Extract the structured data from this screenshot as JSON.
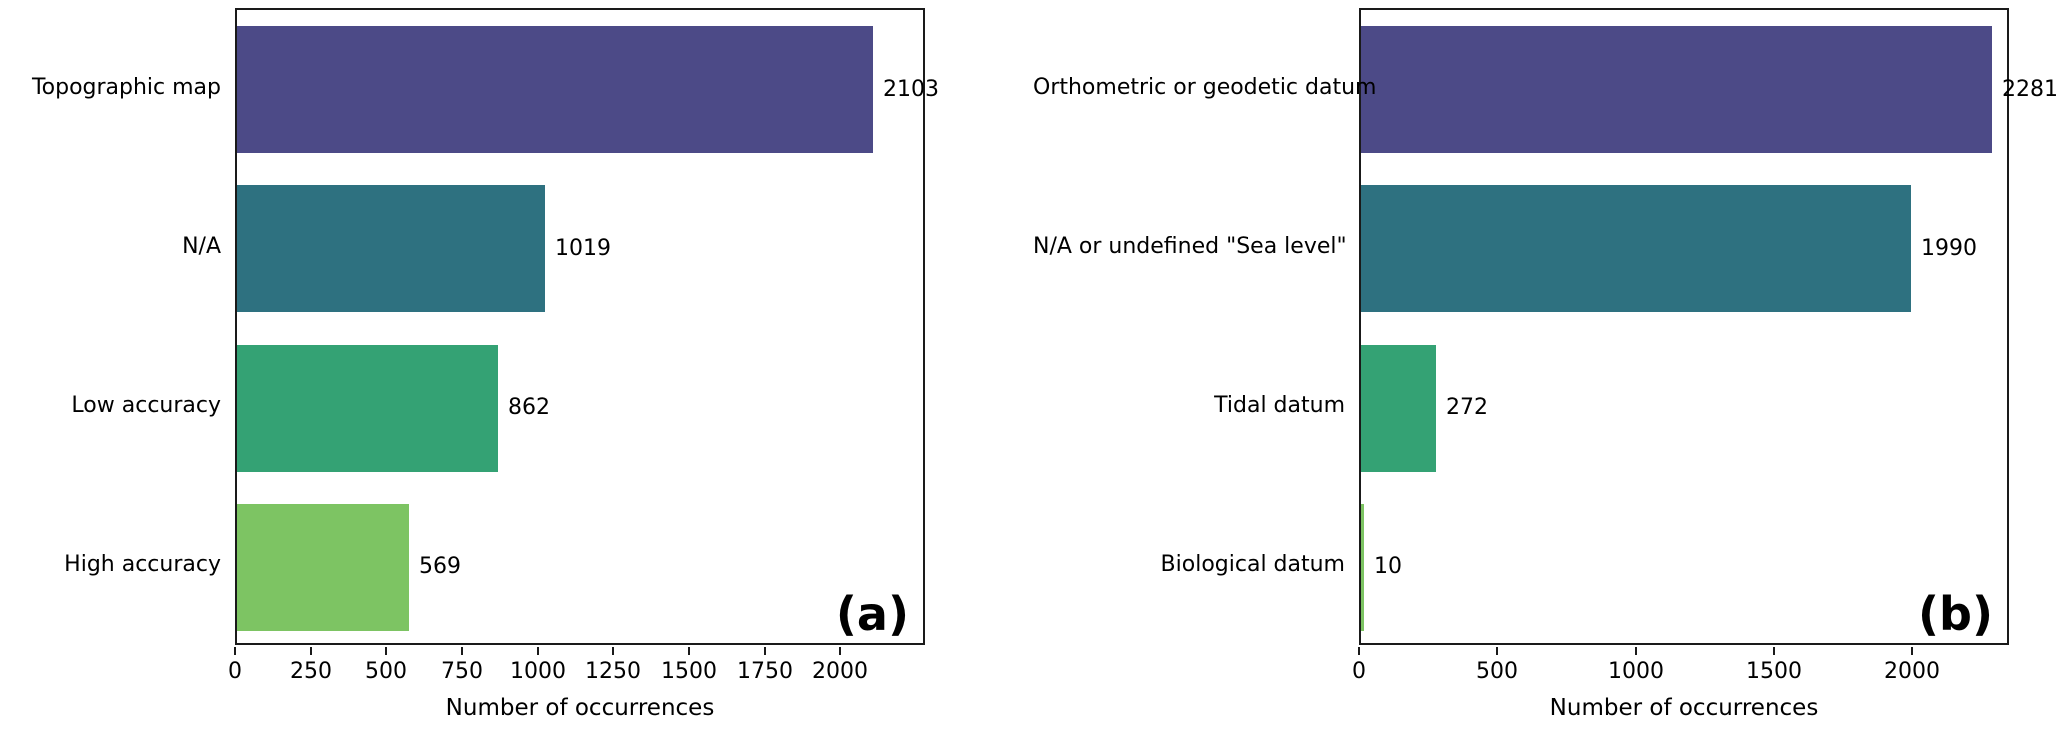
{
  "figure": {
    "background": "#ffffff",
    "text_color": "#000000",
    "spine_color": "#1a1a1a"
  },
  "chart_data": [
    {
      "type": "bar",
      "orientation": "horizontal",
      "panel_label": "(a)",
      "title": "",
      "xlabel": "Number of occurrences",
      "ylabel": "",
      "categories": [
        "Topographic map",
        "N/A",
        "Low accuracy",
        "High accuracy"
      ],
      "values": [
        2103,
        1019,
        862,
        569
      ],
      "value_labels": [
        "2103",
        "1019",
        "862",
        "569"
      ],
      "bar_colors": [
        "#4c4a87",
        "#2e7180",
        "#34a274",
        "#7dc463"
      ],
      "xlim": [
        0,
        2280
      ],
      "xticks": [
        0,
        250,
        500,
        750,
        1000,
        1250,
        1500,
        1750,
        2000
      ],
      "grid": false,
      "legend": false
    },
    {
      "type": "bar",
      "orientation": "horizontal",
      "panel_label": "(b)",
      "title": "",
      "xlabel": "Number of occurrences",
      "ylabel": "",
      "categories": [
        "Orthometric or geodetic datum",
        "N/A or undefined \"Sea level\"",
        "Tidal datum",
        "Biological datum"
      ],
      "values": [
        2281,
        1990,
        272,
        10
      ],
      "value_labels": [
        "2281",
        "1990",
        "272",
        "10"
      ],
      "bar_colors": [
        "#4c4a87",
        "#2e7180",
        "#34a274",
        "#7dc463"
      ],
      "xlim": [
        0,
        2350
      ],
      "xticks": [
        0,
        500,
        1000,
        1500,
        2000
      ],
      "grid": false,
      "legend": false
    }
  ]
}
